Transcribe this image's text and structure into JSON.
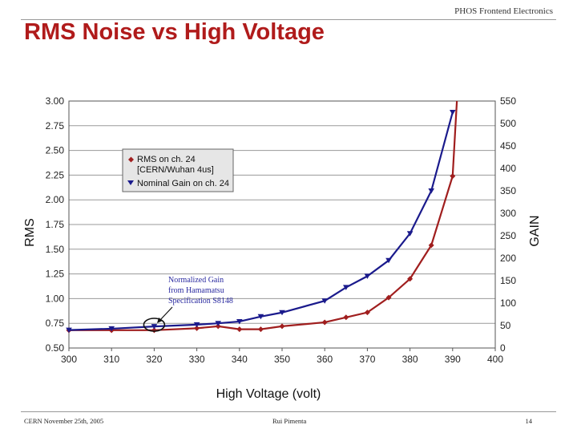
{
  "slide": {
    "header": "PHOS Frontend Electronics",
    "title": "RMS Noise vs High Voltage",
    "footer_left": "CERN November 25th, 2005",
    "footer_center": "Rui Pimenta",
    "footer_right": "14"
  },
  "chart_data": {
    "type": "line",
    "title": "",
    "xlabel": "High Voltage (volt)",
    "ylabel": "RMS",
    "y2label": "GAIN",
    "xlim": [
      300,
      400
    ],
    "ylim": [
      0.5,
      3.0
    ],
    "y2lim": [
      0,
      550
    ],
    "x_ticks": [
      "300",
      "310",
      "320",
      "330",
      "340",
      "350",
      "360",
      "370",
      "380",
      "390",
      "400"
    ],
    "y_ticks": [
      "0.50",
      "0.75",
      "1.00",
      "1.25",
      "1.50",
      "1.75",
      "2.00",
      "2.25",
      "2.50",
      "2.75",
      "3.00"
    ],
    "y2_ticks": [
      "0",
      "50",
      "100",
      "150",
      "200",
      "250",
      "300",
      "350",
      "400",
      "450",
      "500",
      "550"
    ],
    "grid": true,
    "legend_placement": "upper-left",
    "series": [
      {
        "name": "RMS on ch. 24 [CERN/Wuhan 4us]",
        "axis": "left",
        "color": "#a01e1e",
        "marker": "diamond",
        "x": [
          300,
          310,
          320,
          330,
          335,
          340,
          345,
          350,
          360,
          365,
          370,
          375,
          380,
          385,
          390,
          391
        ],
        "y": [
          0.68,
          0.68,
          0.68,
          0.7,
          0.72,
          0.69,
          0.69,
          0.72,
          0.76,
          0.81,
          0.86,
          1.01,
          1.2,
          1.54,
          2.24,
          3.0
        ]
      },
      {
        "name": "Nominal Gain on ch. 24",
        "axis": "right",
        "color": "#1a1a8c",
        "marker": "triangle-down",
        "x": [
          300,
          310,
          320,
          330,
          335,
          340,
          345,
          350,
          360,
          365,
          370,
          375,
          380,
          385,
          390
        ],
        "y": [
          40,
          43,
          48,
          52,
          55,
          59,
          70,
          79,
          105,
          135,
          160,
          195,
          255,
          350,
          525
        ]
      }
    ],
    "annotations": [
      {
        "text_lines": [
          "Normalized Gain",
          "from Hamamatsu",
          "Specification S8148"
        ],
        "target_x": 320
      }
    ]
  }
}
